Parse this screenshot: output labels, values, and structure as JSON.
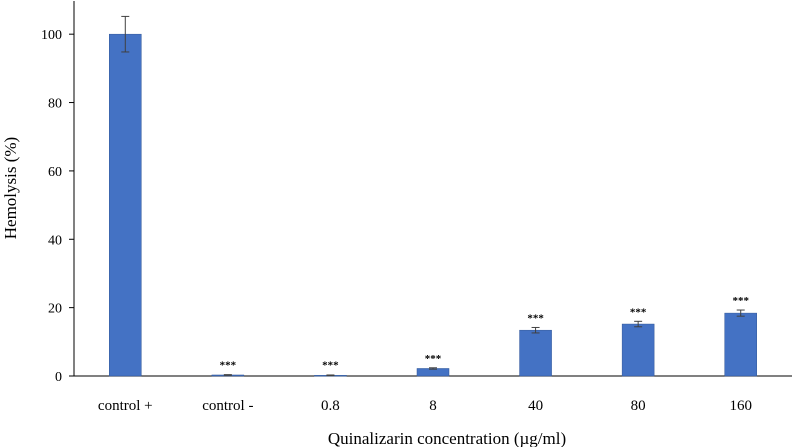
{
  "chart_data": {
    "type": "bar",
    "title": "",
    "xlabel": "Quinalizarin concentration (µg/ml)",
    "ylabel": "Hemolysis (%)",
    "categories": [
      "control +",
      "control -",
      "0.8",
      "8",
      "40",
      "80",
      "160"
    ],
    "values": [
      100,
      0.3,
      0.2,
      2.2,
      13.4,
      15.2,
      18.4
    ],
    "errors": [
      5.2,
      0.1,
      0.1,
      0.2,
      0.8,
      0.8,
      0.9
    ],
    "significance": [
      "",
      "***",
      "***",
      "***",
      "***",
      "***",
      "***"
    ],
    "ylim": [
      0,
      110
    ],
    "yticks": [
      0,
      20,
      40,
      60,
      80,
      100
    ],
    "ytick_labels": [
      "0",
      "20",
      "40",
      "60",
      "80",
      "100"
    ],
    "grid": false,
    "bar_color": "#4472c4",
    "bar_edge_color": "#2f5597"
  }
}
